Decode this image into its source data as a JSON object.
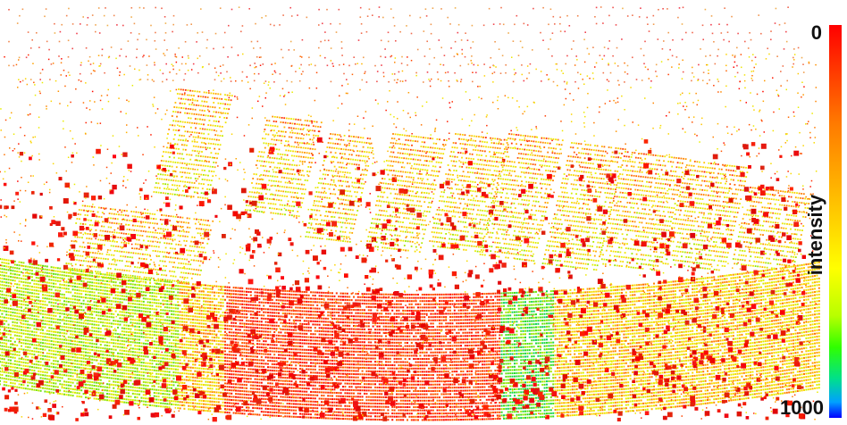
{
  "colorbar": {
    "label": "intensity",
    "min_label": "0",
    "max_label": "1000",
    "colors": [
      "#ff0000",
      "#ff7a00",
      "#ffd200",
      "#ffff00",
      "#b8ff00",
      "#30ff00",
      "#00e08a",
      "#00a0ff",
      "#0000ff"
    ]
  },
  "background_color": "#ffffff"
}
